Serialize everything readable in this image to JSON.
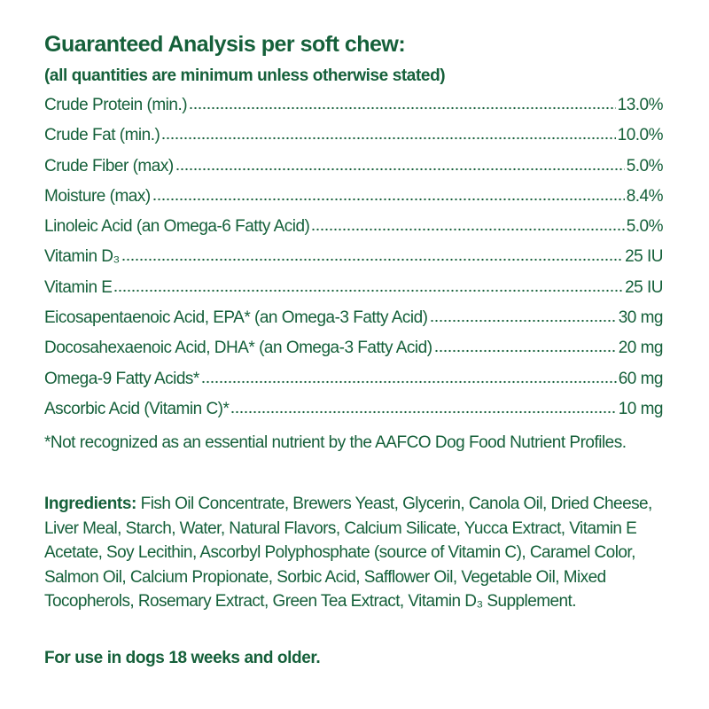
{
  "header": {
    "title": "Guaranteed Analysis per soft chew:",
    "subtitle": "(all quantities are minimum unless otherwise stated)"
  },
  "analysis": {
    "rows": [
      {
        "name": "Crude Protein (min.)",
        "value": "13.0%"
      },
      {
        "name": "Crude Fat (min.)",
        "value": "10.0%"
      },
      {
        "name": "Crude Fiber (max)",
        "value": "5.0%"
      },
      {
        "name": "Moisture (max)",
        "value": "8.4%"
      },
      {
        "name": "Linoleic Acid (an Omega-6 Fatty Acid)",
        "value": "5.0%"
      },
      {
        "name": "Vitamin D₃",
        "value": "25 IU"
      },
      {
        "name": "Vitamin E",
        "value": "25 IU"
      },
      {
        "name": "Eicosapentaenoic Acid, EPA* (an Omega-3 Fatty Acid)",
        "value": "30 mg"
      },
      {
        "name": "Docosahexaenoic Acid, DHA* (an Omega-3 Fatty Acid)",
        "value": "20 mg"
      },
      {
        "name": "Omega-9 Fatty Acids*",
        "value": "60 mg"
      },
      {
        "name": "Ascorbic Acid (Vitamin C)*",
        "value": "10 mg"
      }
    ]
  },
  "footnote": "*Not recognized as an essential nutrient by the AAFCO Dog Food Nutrient Profiles.",
  "ingredients": {
    "label": "Ingredients:",
    "text": "Fish Oil Concentrate, Brewers Yeast, Glycerin, Canola Oil, Dried Cheese, Liver Meal, Starch, Water, Natural Flavors, Calcium Silicate, Yucca Extract, Vitamin E Acetate, Soy Lecithin, Ascorbyl Polyphosphate (source of Vitamin C), Caramel Color, Salmon Oil, Calcium Propionate, Sorbic Acid, Safflower Oil, Vegetable Oil, Mixed Tocopherols, Rosemary Extract, Green Tea Extract, Vitamin D₃ Supplement."
  },
  "usage": "For use in dogs 18 weeks and older."
}
